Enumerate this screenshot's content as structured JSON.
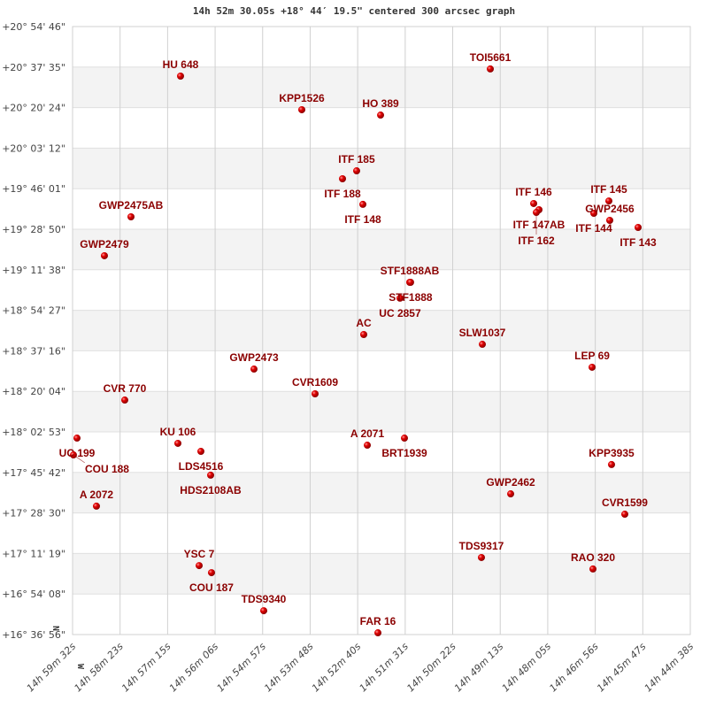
{
  "chart_data": {
    "type": "scatter",
    "title": "14h 52m 30.05s +18° 44′ 19.5\" centered 300 arcsec graph",
    "xlabel": "",
    "ylabel": "",
    "x_units": "RA minutes past 14h (decreasing to the right)",
    "xlim": [
      59.533,
      44.633
    ],
    "ylim": [
      16.6156,
      20.9128
    ],
    "grid": true,
    "x_tick_labels": [
      "14h 59m 32s",
      "14h 58m 23s",
      "14h 57m 15s",
      "14h 56m 06s",
      "14h 54m 57s",
      "14h 53m 48s",
      "14h 52m 40s",
      "14h 51m 31s",
      "14h 50m 22s",
      "14h 49m 13s",
      "14h 48m 05s",
      "14h 46m 56s",
      "14h 45m 47s",
      "14h 44m 38s"
    ],
    "y_tick_labels": [
      "+20° 54' 46\"",
      "+20° 37' 35\"",
      "+20° 20' 24\"",
      "+20° 03' 12\"",
      "+19° 46' 01\"",
      "+19° 28' 50\"",
      "+19° 11' 38\"",
      "+18° 54' 27\"",
      "+18° 37' 16\"",
      "+18° 20' 04\"",
      "+18° 02' 53\"",
      "+17° 45' 42\"",
      "+17° 28' 30\"",
      "+17° 11' 19\"",
      "+16° 54' 08\"",
      "+16° 36' 56\""
    ],
    "compass": {
      "north": "N",
      "west": "W"
    },
    "colors": {
      "point": "#dd0000",
      "label": "#8b0000",
      "grid": "#d0d0d0",
      "band": "#f3f3f3"
    },
    "points": [
      {
        "name": "HU  648",
        "ra_min": 56.929,
        "dec": 20.5625
      },
      {
        "name": "KPP1526",
        "ra_min": 54.004,
        "dec": 20.325
      },
      {
        "name": "HO  389",
        "ra_min": 52.104,
        "dec": 20.287
      },
      {
        "name": "TOI5661",
        "ra_min": 49.457,
        "dec": 20.613
      },
      {
        "name": "ITF 185",
        "ra_min": 52.681,
        "dec": 19.893
      },
      {
        "name": "ITF 188",
        "ra_min": 53.022,
        "dec": 19.837
      },
      {
        "name": "ITF 148",
        "ra_min": 52.531,
        "dec": 19.656
      },
      {
        "name": "GWP2475AB",
        "ra_min": 58.124,
        "dec": 19.568
      },
      {
        "name": "GWP2479",
        "ra_min": 58.765,
        "dec": 19.293
      },
      {
        "name": "STF1888AB",
        "ra_min": 51.4,
        "dec": 19.105
      },
      {
        "name": "STF1888",
        "ra_min": 51.38,
        "dec": 19.105
      },
      {
        "name": "UC 2857",
        "ra_min": 51.635,
        "dec": 18.993
      },
      {
        "name": "AC",
        "ra_min": 52.51,
        "dec": 18.736
      },
      {
        "name": "SLW1037",
        "ra_min": 49.649,
        "dec": 18.667
      },
      {
        "name": "LEP  69",
        "ra_min": 47.002,
        "dec": 18.505
      },
      {
        "name": "GWP2473",
        "ra_min": 55.157,
        "dec": 18.492
      },
      {
        "name": "CVR1609",
        "ra_min": 53.684,
        "dec": 18.317
      },
      {
        "name": "CVR 770",
        "ra_min": 58.274,
        "dec": 18.273
      },
      {
        "name": "UC  199",
        "ra_min": 59.426,
        "dec": 18.004
      },
      {
        "name": "COU 188",
        "ra_min": 59.512,
        "dec": 17.885
      },
      {
        "name": "KU  106",
        "ra_min": 56.993,
        "dec": 17.967
      },
      {
        "name": "LDS4516",
        "ra_min": 56.438,
        "dec": 17.91
      },
      {
        "name": "A  2071",
        "ra_min": 52.424,
        "dec": 17.954
      },
      {
        "name": "BRT1939",
        "ra_min": 51.528,
        "dec": 18.004
      },
      {
        "name": "KPP3935",
        "ra_min": 46.533,
        "dec": 17.817
      },
      {
        "name": "HDS2108AB",
        "ra_min": 56.203,
        "dec": 17.742
      },
      {
        "name": "GWP2462",
        "ra_min": 48.966,
        "dec": 17.61
      },
      {
        "name": "A  2072",
        "ra_min": 58.957,
        "dec": 17.523
      },
      {
        "name": "CVR1599",
        "ra_min": 46.213,
        "dec": 17.466
      },
      {
        "name": "TDS9317",
        "ra_min": 49.671,
        "dec": 17.16
      },
      {
        "name": "RAO 320",
        "ra_min": 46.981,
        "dec": 17.079
      },
      {
        "name": "YSC   7",
        "ra_min": 56.48,
        "dec": 17.103
      },
      {
        "name": "COU 187",
        "ra_min": 56.182,
        "dec": 17.053
      },
      {
        "name": "TDS9340",
        "ra_min": 54.922,
        "dec": 16.784
      },
      {
        "name": "FAR  16",
        "ra_min": 52.168,
        "dec": 16.628
      },
      {
        "name": "ITF 146",
        "ra_min": 48.411,
        "dec": 19.662
      },
      {
        "name": "ITF 147AB",
        "ra_min": 48.283,
        "dec": 19.618
      },
      {
        "name": "ITF 162",
        "ra_min": 48.347,
        "dec": 19.599
      },
      {
        "name": "ITF 145",
        "ra_min": 46.597,
        "dec": 19.68
      },
      {
        "name": "ITF 144",
        "ra_min": 46.96,
        "dec": 19.593
      },
      {
        "name": "GWP2456",
        "ra_min": 46.576,
        "dec": 19.543
      },
      {
        "name": "ITF 143",
        "ra_min": 45.892,
        "dec": 19.493
      }
    ]
  }
}
